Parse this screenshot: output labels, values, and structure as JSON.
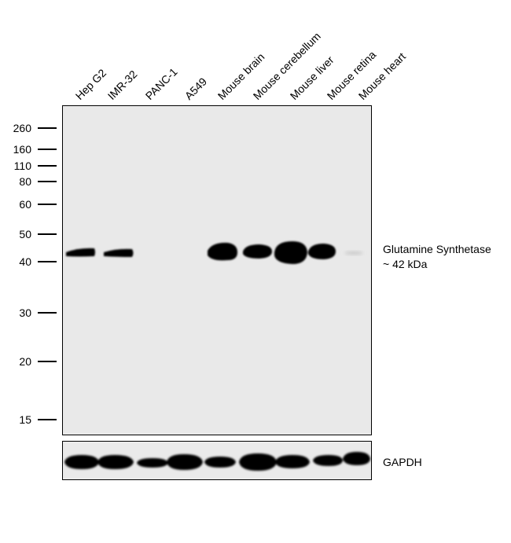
{
  "lanes": [
    "Hep G2",
    "IMR-32",
    "PANC-1",
    "A549",
    "Mouse brain",
    "Mouse cerebellum",
    "Mouse liver",
    "Mouse retina",
    "Mouse heart"
  ],
  "mw_markers": [
    "260",
    "160",
    "110",
    "80",
    "60",
    "50",
    "40",
    "30",
    "20",
    "15"
  ],
  "target": {
    "name": "Glutamine Synthetase",
    "size": "~ 42 kDa"
  },
  "loading_control": "GAPDH",
  "colors": {
    "main_panel_bg": "#e9e9e9",
    "gapdh_panel_bg": "#eaeaea",
    "band": "#000000"
  }
}
